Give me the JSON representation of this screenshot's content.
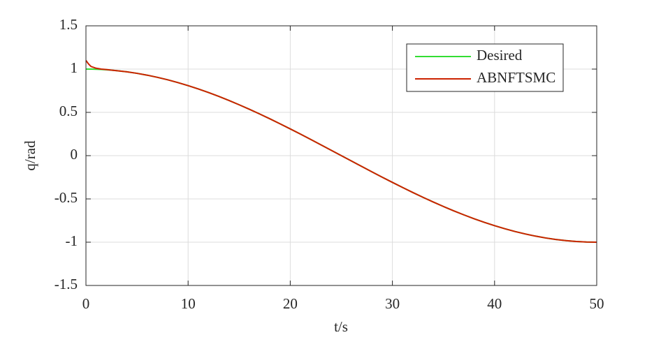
{
  "chart_data": {
    "type": "line",
    "x_label": "t/s",
    "y_label": "q/rad",
    "x": [
      0,
      0.25,
      0.5,
      1,
      1.5,
      2,
      2.5,
      3,
      4,
      5,
      6,
      7,
      8,
      9,
      10,
      11,
      12,
      13,
      14,
      15,
      16,
      17,
      18,
      19,
      20,
      21,
      22,
      23,
      24,
      25,
      26,
      27,
      28,
      29,
      30,
      31,
      32,
      33,
      34,
      35,
      36,
      37,
      38,
      39,
      40,
      41,
      42,
      43,
      44,
      45,
      46,
      47,
      48,
      49,
      50
    ],
    "series": [
      {
        "name": "Desired",
        "color": "#33dd33",
        "values": [
          1,
          0.9999,
          0.9995,
          0.998,
          0.9956,
          0.9921,
          0.9877,
          0.9823,
          0.9686,
          0.9511,
          0.9298,
          0.9048,
          0.8763,
          0.8443,
          0.809,
          0.7705,
          0.729,
          0.6845,
          0.6374,
          0.5878,
          0.5358,
          0.4818,
          0.4258,
          0.3681,
          0.309,
          0.2487,
          0.1874,
          0.1253,
          0.0628,
          0,
          -0.0628,
          -0.1253,
          -0.1874,
          -0.2487,
          -0.309,
          -0.3681,
          -0.4258,
          -0.4818,
          -0.5358,
          -0.5878,
          -0.6374,
          -0.6845,
          -0.729,
          -0.7705,
          -0.809,
          -0.8443,
          -0.8763,
          -0.9048,
          -0.9298,
          -0.9511,
          -0.9686,
          -0.9823,
          -0.9921,
          -0.998,
          -1
        ]
      },
      {
        "name": "ABNFTSMC",
        "color": "#cc2200",
        "values": [
          1.1,
          1.06,
          1.03,
          1.01,
          1.0,
          0.995,
          0.9877,
          0.9823,
          0.9686,
          0.9511,
          0.9298,
          0.9048,
          0.8763,
          0.8443,
          0.809,
          0.7705,
          0.729,
          0.6845,
          0.6374,
          0.5878,
          0.5358,
          0.4818,
          0.4258,
          0.3681,
          0.309,
          0.2487,
          0.1874,
          0.1253,
          0.0628,
          0,
          -0.0628,
          -0.1253,
          -0.1874,
          -0.2487,
          -0.309,
          -0.3681,
          -0.4258,
          -0.4818,
          -0.5358,
          -0.5878,
          -0.6374,
          -0.6845,
          -0.729,
          -0.7705,
          -0.809,
          -0.8443,
          -0.8763,
          -0.9048,
          -0.9298,
          -0.9511,
          -0.9686,
          -0.9823,
          -0.9921,
          -0.998,
          -1
        ]
      }
    ],
    "xlim": [
      0,
      50
    ],
    "xticks": [
      0,
      10,
      20,
      30,
      40,
      50
    ],
    "ylim": [
      -1.5,
      1.5
    ],
    "yticks": [
      -1.5,
      -1,
      -0.5,
      0,
      0.5,
      1,
      1.5
    ],
    "grid": true,
    "legend": "upper right"
  }
}
